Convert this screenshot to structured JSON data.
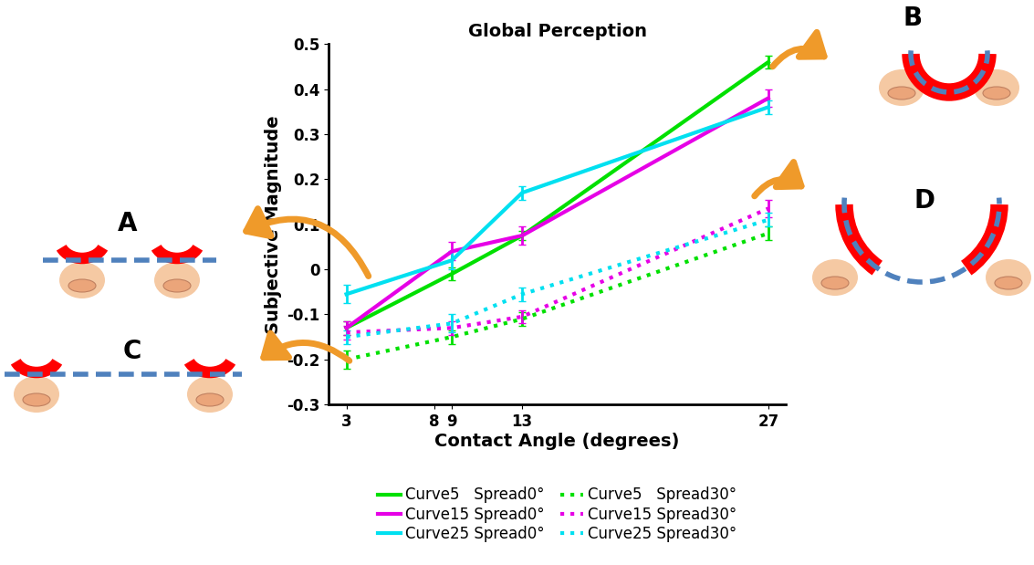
{
  "chart_data": {
    "type": "line",
    "title": "Global Perception",
    "xlabel": "Contact Angle (degrees)",
    "ylabel": "Subjective Magnitude",
    "x": [
      3,
      9,
      13,
      27
    ],
    "series": [
      {
        "name": "Curve5   Spread0°",
        "color": "#00e000",
        "line_style": "solid",
        "values": [
          -0.13,
          -0.01,
          0.075,
          0.46
        ],
        "errors": [
          0.015,
          0.015,
          0.01,
          0.015
        ]
      },
      {
        "name": "Curve15 Spread0°",
        "color": "#e600e6",
        "line_style": "solid",
        "values": [
          -0.13,
          0.04,
          0.075,
          0.38
        ],
        "errors": [
          0.015,
          0.02,
          0.02,
          0.02
        ]
      },
      {
        "name": "Curve25 Spread0°",
        "color": "#00e0f0",
        "line_style": "solid",
        "values": [
          -0.055,
          0.02,
          0.17,
          0.36
        ],
        "errors": [
          0.02,
          0.02,
          0.015,
          0.015
        ]
      },
      {
        "name": "Curve5   Spread30°",
        "color": "#00e000",
        "line_style": "dotted",
        "values": [
          -0.2,
          -0.15,
          -0.11,
          0.08
        ],
        "errors": [
          0.02,
          0.015,
          0.015,
          0.015
        ]
      },
      {
        "name": "Curve15 Spread30°",
        "color": "#e600e6",
        "line_style": "dotted",
        "values": [
          -0.14,
          -0.13,
          -0.105,
          0.135
        ],
        "errors": [
          0.015,
          0.015,
          0.015,
          0.02
        ]
      },
      {
        "name": "Curve25 Spread30°",
        "color": "#00e0f0",
        "line_style": "dotted",
        "values": [
          -0.15,
          -0.12,
          -0.055,
          0.11
        ],
        "errors": [
          0.015,
          0.02,
          0.015,
          0.015
        ]
      }
    ],
    "xlim": [
      2,
      28
    ],
    "xticks": [
      3,
      8,
      9,
      13,
      27
    ],
    "ylim": [
      -0.3,
      0.5
    ],
    "yticks": [
      -0.3,
      -0.2,
      -0.1,
      0,
      0.1,
      0.2,
      0.3,
      0.4,
      0.5
    ],
    "legend": "lower center",
    "annotations": [
      "A",
      "B",
      "C",
      "D"
    ]
  }
}
